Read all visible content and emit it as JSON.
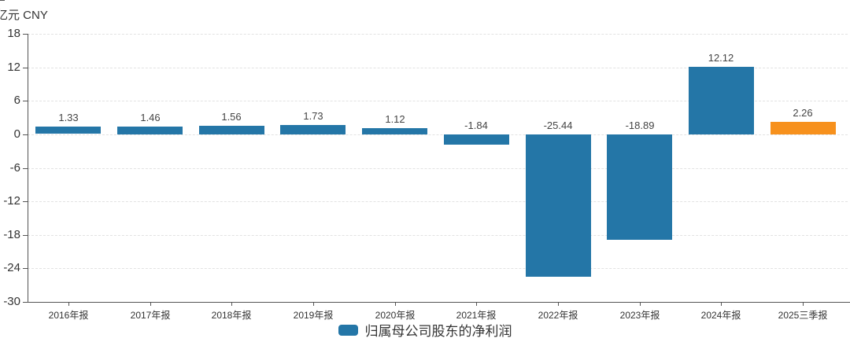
{
  "chart_data": {
    "type": "bar",
    "title": "",
    "ylabel": "亿元 CNY",
    "xlabel": "",
    "categories": [
      "2016年报",
      "2017年报",
      "2018年报",
      "2019年报",
      "2020年报",
      "2021年报",
      "2022年报",
      "2023年报",
      "2024年报",
      "2025三季报"
    ],
    "series": [
      {
        "name": "归属母公司股东的净利润",
        "values": [
          1.33,
          1.46,
          1.56,
          1.73,
          1.12,
          -1.84,
          -25.44,
          -18.89,
          12.12,
          2.26
        ]
      }
    ],
    "value_labels": [
      "1.33",
      "1.46",
      "1.56",
      "1.73",
      "1.12",
      "-1.84",
      "-25.44",
      "-18.89",
      "12.12",
      "2.26"
    ],
    "point_colors": [
      "#2476a7",
      "#2476a7",
      "#2476a7",
      "#2476a7",
      "#2476a7",
      "#2476a7",
      "#2476a7",
      "#2476a7",
      "#2476a7",
      "#f7911d"
    ],
    "yticks": [
      18,
      12,
      6,
      0,
      -6,
      -12,
      -18,
      -24,
      -30
    ],
    "ylim": [
      -30,
      18
    ],
    "grid": true,
    "legend_position": "bottom"
  },
  "legend": {
    "label": "归属母公司股东的净利润",
    "swatch_color": "#2476a7"
  },
  "colors": {
    "bar_primary": "#2476a7",
    "bar_highlight": "#f7911d",
    "axis": "#555555",
    "gridline": "#e2e2e2",
    "text": "#333333"
  }
}
